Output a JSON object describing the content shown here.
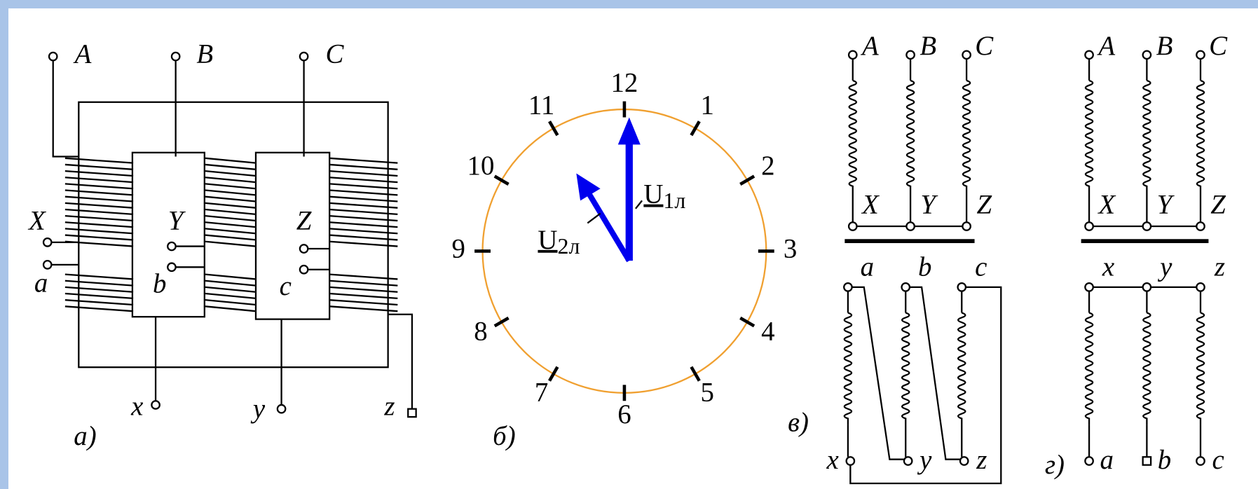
{
  "panel_a": {
    "label": "а)",
    "top_terminals": [
      "A",
      "B",
      "C"
    ],
    "primary_ends": [
      "X",
      "Y",
      "Z"
    ],
    "secondary_starts": [
      "a",
      "b",
      "c"
    ],
    "bottom_terminals": [
      "x",
      "y",
      "z"
    ]
  },
  "panel_b": {
    "label": "б)",
    "hours": [
      1,
      2,
      3,
      4,
      5,
      6,
      7,
      8,
      9,
      10,
      11,
      12
    ],
    "vectors": [
      {
        "symbol": "U",
        "subscript": "1л"
      },
      {
        "symbol": "U",
        "subscript": "2л"
      }
    ]
  },
  "panel_v": {
    "label": "в)",
    "primary_top": [
      "A",
      "B",
      "C"
    ],
    "primary_bottom": [
      "X",
      "Y",
      "Z"
    ],
    "secondary_top": [
      "a",
      "b",
      "c"
    ],
    "secondary_bottom": [
      "x",
      "y",
      "z"
    ]
  },
  "panel_g": {
    "label": "г)",
    "primary_top": [
      "A",
      "B",
      "C"
    ],
    "primary_bottom": [
      "X",
      "Y",
      "Z"
    ],
    "secondary_top": [
      "x",
      "y",
      "z"
    ],
    "secondary_bottom": [
      "a",
      "b",
      "c"
    ]
  }
}
